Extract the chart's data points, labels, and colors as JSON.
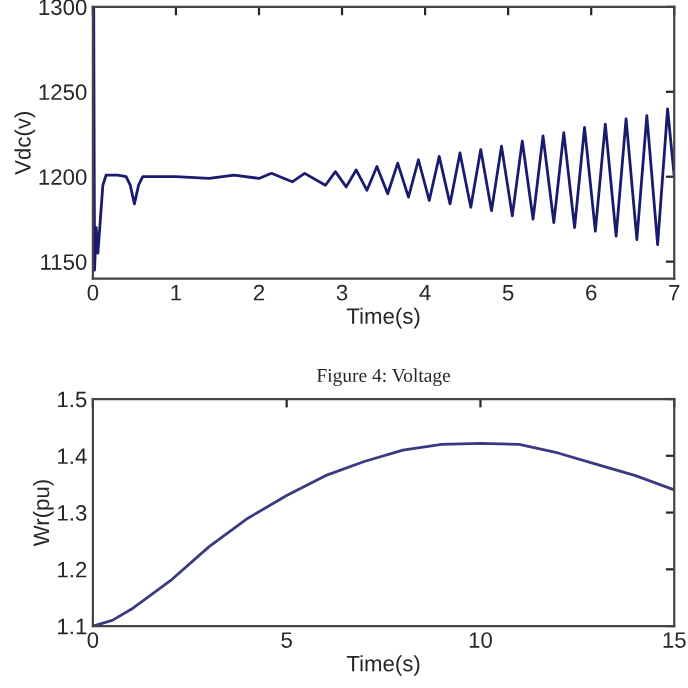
{
  "chart_data": [
    {
      "type": "line",
      "xlabel": "Time(s)",
      "ylabel": "Vdc(v)",
      "annotations": [
        "Figure 4: Voltage"
      ],
      "xlim": [
        0,
        7
      ],
      "xticks": [
        0,
        1,
        2,
        3,
        4,
        5,
        6,
        7
      ],
      "ylim": [
        1140,
        1300
      ],
      "yticks": [
        1150,
        1200,
        1250,
        1300
      ],
      "grid": false,
      "legend": false,
      "series": [
        {
          "color": "#1a1a6e",
          "x": [
            0,
            0.01,
            0.02,
            0.04,
            0.06,
            0.08,
            0.12,
            0.16,
            0.3,
            0.4,
            0.45,
            0.5,
            0.55,
            0.6,
            1.0,
            1.4,
            1.7,
            2.0,
            2.15,
            2.4,
            2.55,
            2.8,
            2.92,
            3.05,
            3.17,
            3.3,
            3.42,
            3.55,
            3.67,
            3.8,
            3.92,
            4.05,
            4.17,
            4.3,
            4.42,
            4.55,
            4.67,
            4.8,
            4.92,
            5.05,
            5.17,
            5.3,
            5.42,
            5.55,
            5.67,
            5.8,
            5.92,
            6.05,
            6.17,
            6.3,
            6.42,
            6.55,
            6.67,
            6.8,
            6.92,
            7.0
          ],
          "values": [
            1200,
            1300,
            1145,
            1170,
            1155,
            1168,
            1195,
            1201,
            1201,
            1200,
            1195,
            1184,
            1195,
            1200,
            1200,
            1199,
            1201,
            1199,
            1202,
            1197,
            1202,
            1195,
            1203,
            1194,
            1204,
            1192,
            1206,
            1190,
            1208,
            1188,
            1210,
            1186,
            1212,
            1184,
            1214,
            1182,
            1216,
            1180,
            1218,
            1177,
            1221,
            1175,
            1224,
            1173,
            1226,
            1170,
            1229,
            1168,
            1231,
            1165,
            1234,
            1163,
            1236,
            1160,
            1240,
            1200
          ]
        }
      ]
    },
    {
      "type": "line",
      "xlabel": "Time(s)",
      "ylabel": "Wr(pu)",
      "xlim": [
        0,
        15
      ],
      "xticks": [
        0,
        5,
        10,
        15
      ],
      "ylim": [
        1.1,
        1.5
      ],
      "yticks": [
        1.1,
        1.2,
        1.3,
        1.4,
        1.5
      ],
      "grid": false,
      "legend": false,
      "series": [
        {
          "color": "#3a3a80",
          "x": [
            0,
            0.5,
            1,
            2,
            3,
            4,
            5,
            6,
            7,
            8,
            9,
            10,
            11,
            12,
            13,
            14,
            15
          ],
          "values": [
            1.1,
            1.11,
            1.13,
            1.18,
            1.24,
            1.29,
            1.33,
            1.365,
            1.39,
            1.41,
            1.42,
            1.422,
            1.42,
            1.405,
            1.385,
            1.365,
            1.34
          ]
        }
      ]
    }
  ]
}
